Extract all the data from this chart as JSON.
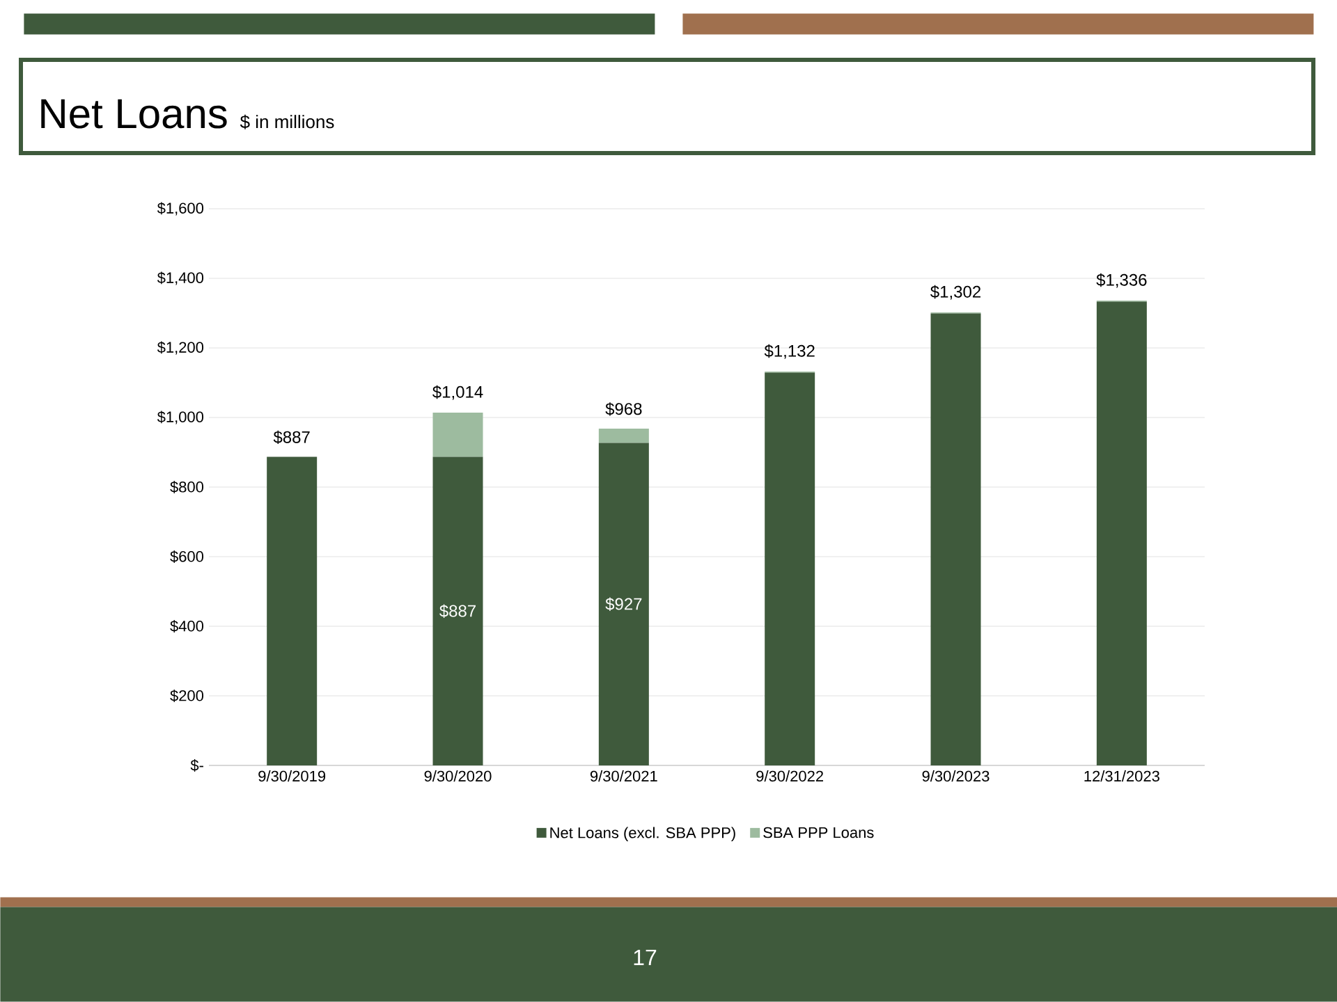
{
  "chart_data": {
    "type": "bar",
    "title": "Net Loans",
    "subtitle": "$ in millions",
    "categories": [
      "9/30/2019",
      "9/30/2020",
      "9/30/2021",
      "9/30/2022",
      "9/30/2023",
      "12/31/2023"
    ],
    "stacked": true,
    "series": [
      {
        "name": "Net Loans (excl. SBA PPP)",
        "color": "#3f5a3c",
        "values": [
          887,
          887,
          927,
          1129,
          1299,
          1333
        ],
        "value_labels": [
          null,
          "$887",
          "$927",
          null,
          null,
          null
        ]
      },
      {
        "name": "SBA PPP Loans",
        "color": "#9dbb9f",
        "values": [
          0,
          127,
          41,
          3,
          3,
          3
        ]
      }
    ],
    "totals": [
      "$887",
      "$1,014",
      "$968",
      "$1,132",
      "$1,302",
      "$1,336"
    ],
    "ylim": [
      0,
      1600
    ],
    "yticks": [
      {
        "value": 0,
        "label": "$-"
      },
      {
        "value": 200,
        "label": "$200"
      },
      {
        "value": 400,
        "label": "$400"
      },
      {
        "value": 600,
        "label": "$600"
      },
      {
        "value": 800,
        "label": "$800"
      },
      {
        "value": 1000,
        "label": "$1,000"
      },
      {
        "value": 1200,
        "label": "$1,200"
      },
      {
        "value": 1400,
        "label": "$1,400"
      },
      {
        "value": 1600,
        "label": "$1,600"
      }
    ],
    "grid": "y",
    "legend": "bottom",
    "annotations": [
      "17"
    ]
  }
}
